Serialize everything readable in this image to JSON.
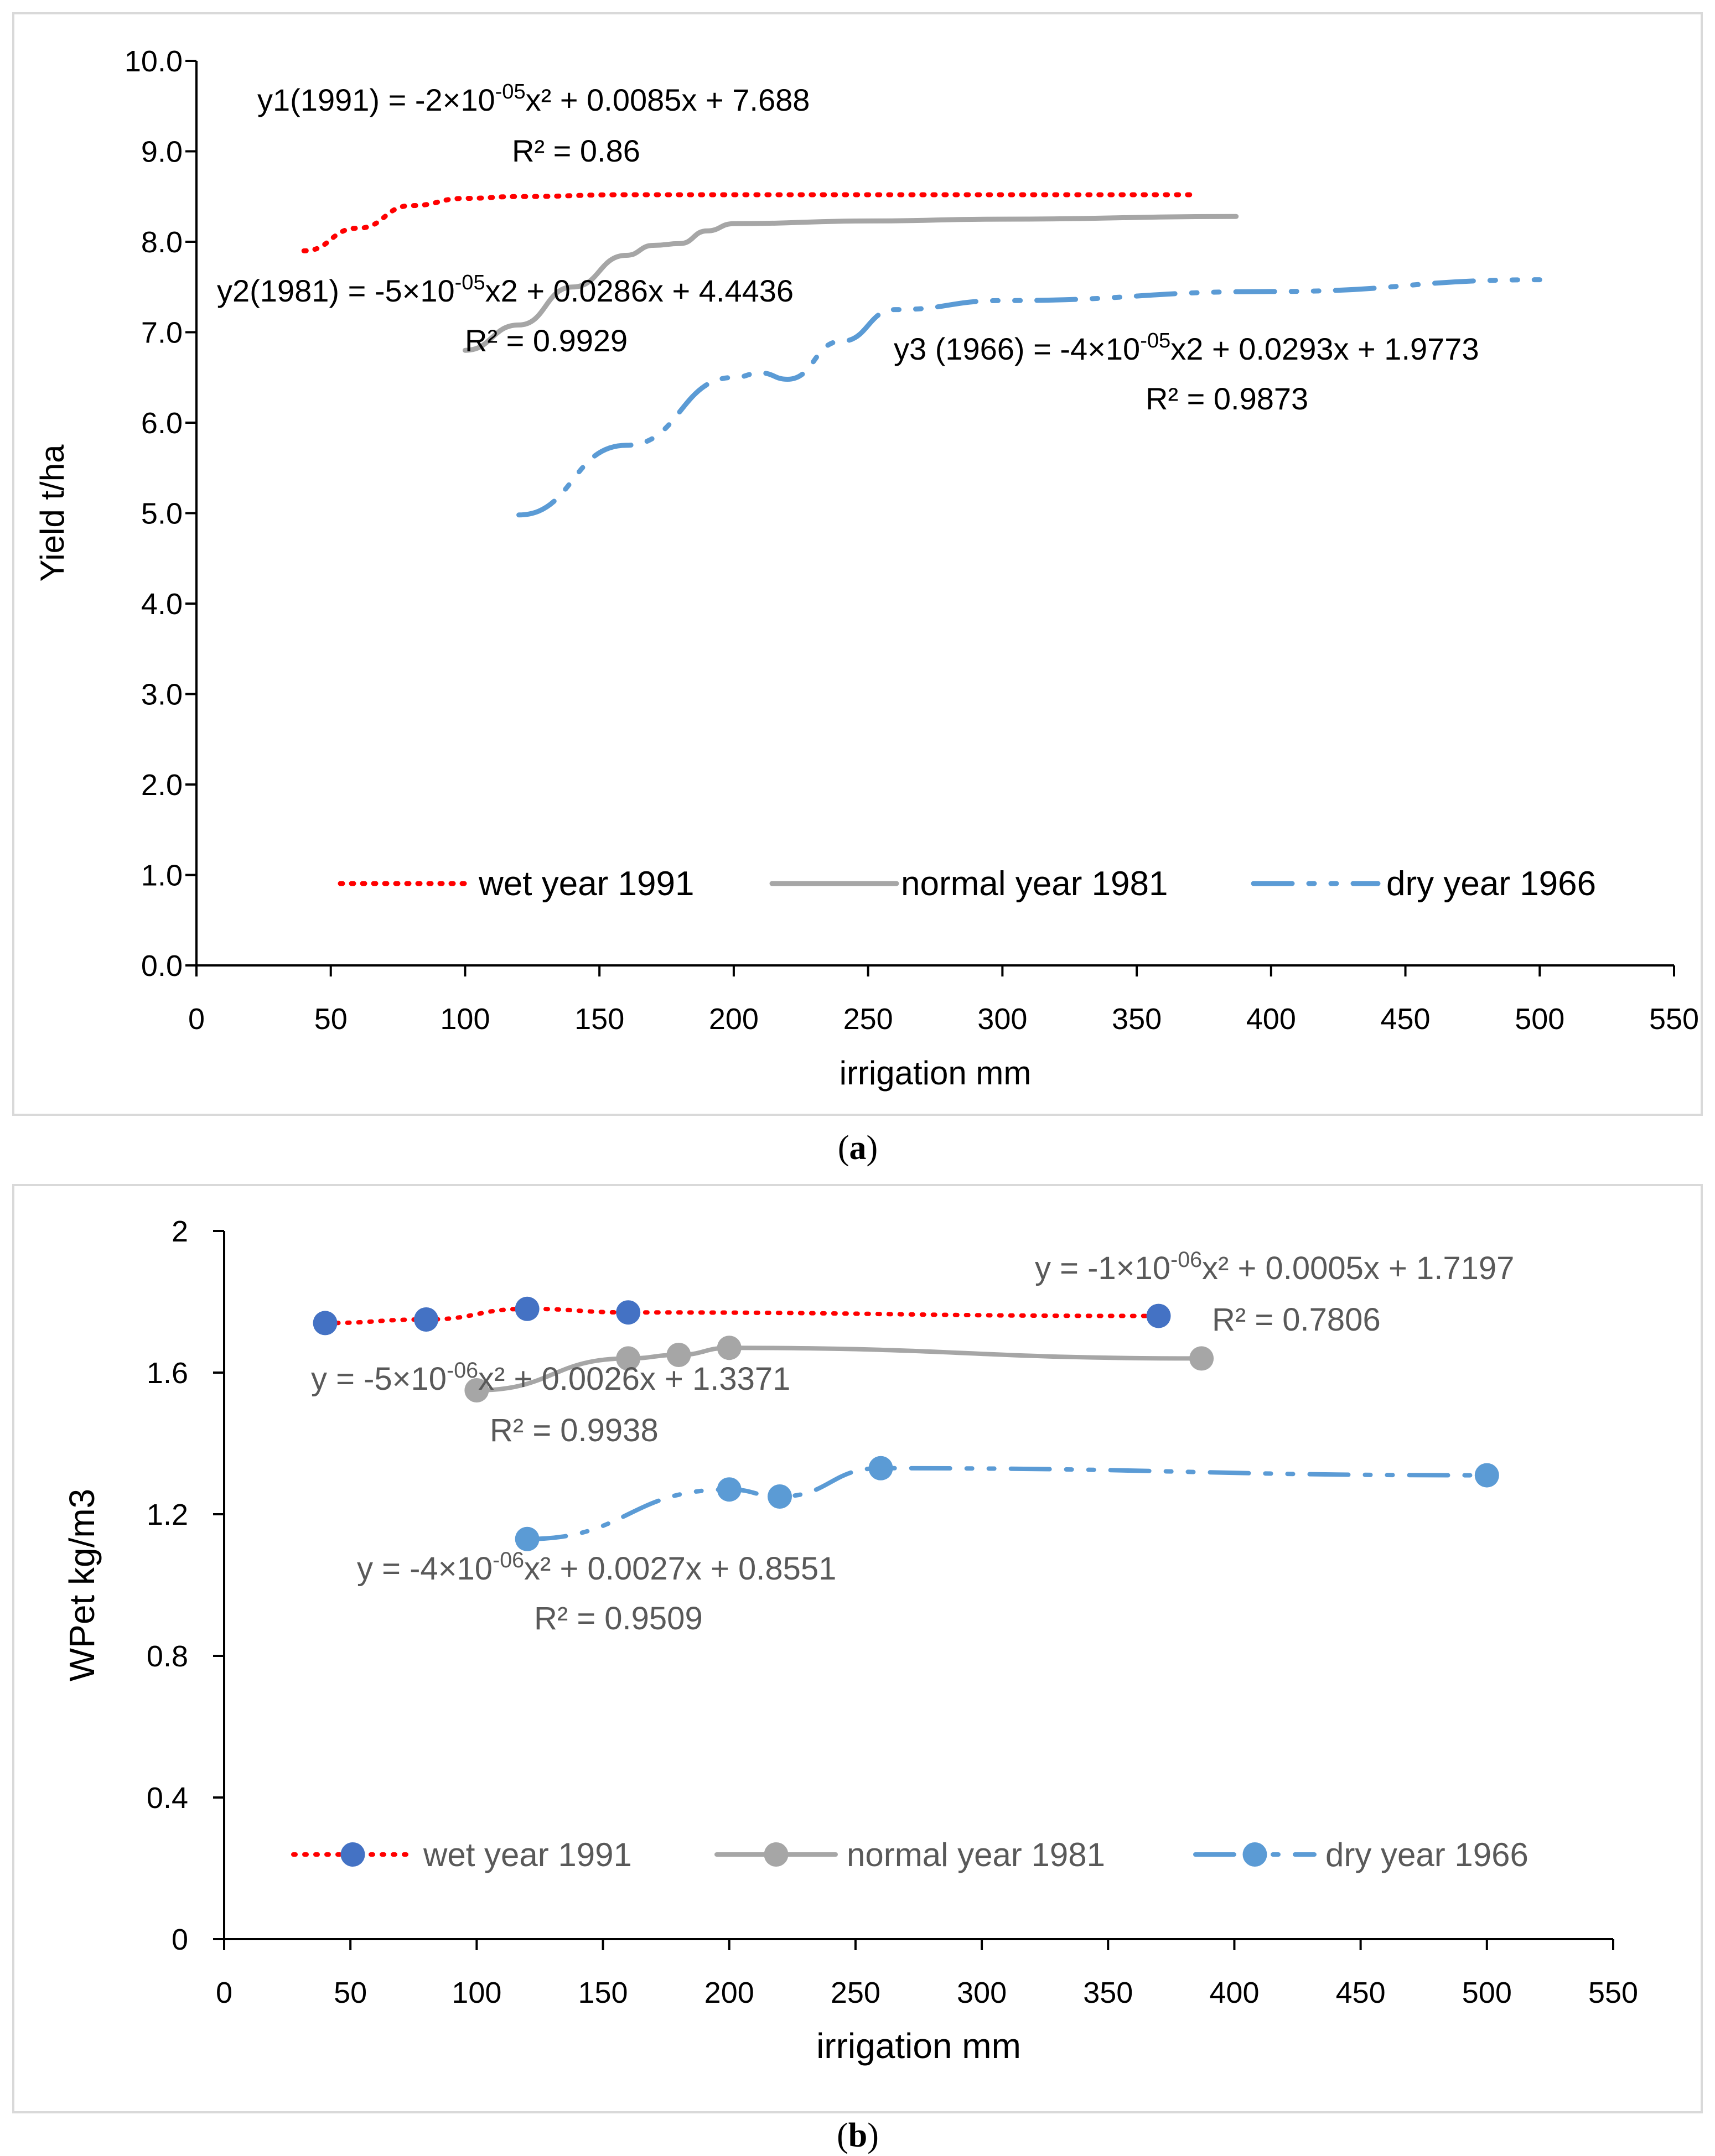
{
  "panels": [
    {
      "caption_letter": "a",
      "chart_data": {
        "type": "line",
        "ylabel": "Yield  t/ha",
        "xlabel": "irrigation  mm",
        "xlim": [
          0,
          550
        ],
        "ylim": [
          0,
          10
        ],
        "x_ticks": [
          "0",
          "50",
          "100",
          "150",
          "200",
          "250",
          "300",
          "350",
          "400",
          "450",
          "500",
          "550"
        ],
        "y_ticks": [
          "0.0",
          "1.0",
          "2.0",
          "3.0",
          "4.0",
          "5.0",
          "6.0",
          "7.0",
          "8.0",
          "9.0",
          "10.0"
        ],
        "legend": [
          "wet year 1991",
          "normal year 1981",
          "dry year 1966"
        ],
        "series": [
          {
            "name": "wet year 1991",
            "color": "#ff0000",
            "style": "dotted",
            "x": [
              40,
              60,
              80,
              100,
              120,
              160,
              200,
              260,
              370
            ],
            "y": [
              7.9,
              8.15,
              8.4,
              8.48,
              8.5,
              8.52,
              8.52,
              8.52,
              8.52
            ]
          },
          {
            "name": "normal year 1981",
            "color": "#a6a6a6",
            "style": "solid",
            "x": [
              100,
              120,
              140,
              160,
              170,
              180,
              190,
              200,
              250,
              300,
              387
            ],
            "y": [
              6.8,
              7.08,
              7.5,
              7.85,
              7.96,
              7.98,
              8.12,
              8.2,
              8.23,
              8.25,
              8.28
            ]
          },
          {
            "name": "dry year 1966",
            "color": "#5b9bd5",
            "style": "dashdotdot",
            "x": [
              120,
              160,
              200,
              210,
              220,
              240,
              260,
              300,
              400,
              500
            ],
            "y": [
              4.98,
              5.75,
              6.5,
              6.55,
              6.48,
              6.9,
              7.25,
              7.35,
              7.45,
              7.58
            ]
          }
        ],
        "annotations": [
          {
            "line1": "y1(1991) = -2×10",
            "exp": "-05",
            "line1b": "x² + 0.0085x + 7.688",
            "line2": "R² = 0.86"
          },
          {
            "line1": "y2(1981) = -5×10",
            "exp": "-05",
            "line1b": "x2 + 0.0286x + 4.4436",
            "line2": "R² = 0.9929"
          },
          {
            "line1": "y3 (1966) = -4×10",
            "exp": "-05",
            "line1b": "x2 + 0.0293x + 1.9773",
            "line2": "R² = 0.9873"
          }
        ]
      }
    },
    {
      "caption_letter": "b",
      "chart_data": {
        "type": "line",
        "ylabel": "WPet  kg/m3",
        "xlabel": "irrigation mm",
        "xlim": [
          0,
          550
        ],
        "ylim": [
          0,
          2
        ],
        "x_ticks": [
          "0",
          "50",
          "100",
          "150",
          "200",
          "250",
          "300",
          "350",
          "400",
          "450",
          "500",
          "550"
        ],
        "y_ticks": [
          "0",
          "0.4",
          "0.8",
          "1.2",
          "1.6",
          "2"
        ],
        "legend": [
          "wet year 1991",
          "normal year 1981",
          "dry year 1966"
        ],
        "series": [
          {
            "name": "wet year 1991",
            "color": "#ff0000",
            "marker_color": "#4472c4",
            "style": "dotted",
            "x": [
              40,
              80,
              120,
              160,
              370
            ],
            "y": [
              1.74,
              1.75,
              1.78,
              1.77,
              1.76
            ]
          },
          {
            "name": "normal year 1981",
            "color": "#a6a6a6",
            "marker_color": "#a6a6a6",
            "style": "solid",
            "x": [
              100,
              160,
              180,
              200,
              387
            ],
            "y": [
              1.55,
              1.64,
              1.65,
              1.67,
              1.64
            ]
          },
          {
            "name": "dry year 1966",
            "color": "#5b9bd5",
            "marker_color": "#5b9bd5",
            "style": "dashdotdot",
            "x": [
              120,
              200,
              220,
              260,
              500
            ],
            "y": [
              1.13,
              1.27,
              1.25,
              1.33,
              1.31
            ]
          }
        ],
        "annotations": [
          {
            "line1": "y = -1×10",
            "exp": "-06",
            "line1b": "x² + 0.0005x + 1.7197",
            "line2": "R² = 0.7806"
          },
          {
            "line1": "y = -5×10",
            "exp": "-06",
            "line1b": "x² + 0.0026x + 1.3371",
            "line2": "R² = 0.9938"
          },
          {
            "line1": "y = -4×10",
            "exp": "-06",
            "line1b": "x² + 0.0027x + 0.8551",
            "line2": "R² = 0.9509"
          }
        ]
      }
    }
  ]
}
